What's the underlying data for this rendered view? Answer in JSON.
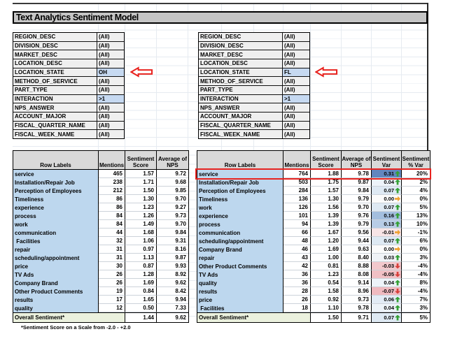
{
  "title": "Text Analytics Sentiment Model",
  "footer_note": "*Sentiment Score on a Scale from -2.0 - +2.0",
  "colors": {
    "row_label_bg": "#BDD7EE",
    "header_bg": "#D9D9D9",
    "overall_label_bg": "#EBF1DE",
    "filter_bg": "#EFEFEF",
    "filter_highlight_bg": "#C6D9F1",
    "annotation_red": "#E8231F",
    "trend_up_green": "#35A035",
    "trend_flat_orange": "#F0A232",
    "trend_down_red": "#D8403B"
  },
  "filters": {
    "labels": [
      "REGION_DESC",
      "DIVISION_DESC",
      "MARKET_DESC",
      "LOCATION_DESC",
      "LOCATION_STATE",
      "METHOD_OF_SERVICE",
      "PART_TYPE",
      "INTERACTION",
      "NPS_ANSWER",
      "ACCOUNT_MAJOR",
      "FISCAL_QUARTER_NAME",
      "FISCAL_WEEK_NAME"
    ],
    "left": {
      "values": [
        "(All)",
        "(All)",
        "(All)",
        "(All)",
        "OH",
        "(All)",
        "(All)",
        ">1",
        "(All)",
        "(All)",
        "(All)",
        "(All)"
      ],
      "highlighted": [
        4,
        7
      ]
    },
    "right": {
      "values": [
        "(All)",
        "(All)",
        "(All)",
        "(All)",
        "FL",
        "(All)",
        "(All)",
        ">1",
        "(All)",
        "(All)",
        "(All)",
        "(All)"
      ],
      "highlighted": [
        4,
        7
      ]
    }
  },
  "left_table": {
    "headers": [
      "Row Labels",
      "Mentions",
      "Sentiment Score",
      "Average of NPS"
    ],
    "rows": [
      {
        "label": "service",
        "mentions": "465",
        "score": "1.57",
        "nps": "9.72"
      },
      {
        "label": "Installation/Repair Job",
        "mentions": "238",
        "score": "1.71",
        "nps": "9.68"
      },
      {
        "label": "Perception of Employees",
        "mentions": "212",
        "score": "1.50",
        "nps": "9.85"
      },
      {
        "label": "Timeliness",
        "mentions": "86",
        "score": "1.30",
        "nps": "9.70"
      },
      {
        "label": "experience",
        "mentions": "86",
        "score": "1.23",
        "nps": "9.27"
      },
      {
        "label": "process",
        "mentions": "84",
        "score": "1.26",
        "nps": "9.73"
      },
      {
        "label": "work",
        "mentions": "84",
        "score": "1.49",
        "nps": "9.70"
      },
      {
        "label": "communication",
        "mentions": "44",
        "score": "1.68",
        "nps": "9.84"
      },
      {
        "label": " Facilities",
        "mentions": "32",
        "score": "1.06",
        "nps": "9.31"
      },
      {
        "label": "repair",
        "mentions": "31",
        "score": "0.97",
        "nps": "8.16"
      },
      {
        "label": "scheduling/appointment",
        "mentions": "31",
        "score": "1.13",
        "nps": "9.87"
      },
      {
        "label": "price",
        "mentions": "30",
        "score": "0.87",
        "nps": "9.93"
      },
      {
        "label": "TV Ads",
        "mentions": "26",
        "score": "1.28",
        "nps": "8.92"
      },
      {
        "label": "Company Brand",
        "mentions": "26",
        "score": "1.69",
        "nps": "9.62"
      },
      {
        "label": "Other Product Comments",
        "mentions": "19",
        "score": "0.84",
        "nps": "8.42"
      },
      {
        "label": "results",
        "mentions": "17",
        "score": "1.65",
        "nps": "9.94"
      },
      {
        "label": "quality",
        "mentions": "12",
        "score": "0.50",
        "nps": "7.33"
      }
    ],
    "overall": {
      "label": "Overall Sentiment*",
      "score": "1.44",
      "nps": "9.62"
    }
  },
  "right_table": {
    "headers": [
      "Row Labels",
      "Mentions",
      "Sentiment Score",
      "Average of NPS",
      "Sentiment Var",
      "Sentiment % Var"
    ],
    "rows": [
      {
        "label": "service",
        "mentions": "764",
        "score": "1.88",
        "nps": "9.78",
        "var": "0.31",
        "var_bg": "#6286BE",
        "trend": "up",
        "pct": "20%"
      },
      {
        "label": "Installation/Repair Job",
        "mentions": "503",
        "score": "1.75",
        "nps": "9.87",
        "var": "0.04",
        "var_bg": "#EDF3F9",
        "trend": "up",
        "pct": "2%"
      },
      {
        "label": "Perception of Employees",
        "mentions": "284",
        "score": "1.57",
        "nps": "9.84",
        "var": "0.07",
        "var_bg": "#DEE9F3",
        "trend": "up",
        "pct": "4%"
      },
      {
        "label": "Timeliness",
        "mentions": "136",
        "score": "1.30",
        "nps": "9.79",
        "var": "0.00",
        "var_bg": "#FBFBFB",
        "trend": "right",
        "pct": "0%"
      },
      {
        "label": "work",
        "mentions": "126",
        "score": "1.56",
        "nps": "9.70",
        "var": "0.07",
        "var_bg": "#DEE9F3",
        "trend": "up",
        "pct": "5%"
      },
      {
        "label": "experience",
        "mentions": "101",
        "score": "1.39",
        "nps": "9.76",
        "var": "0.16",
        "var_bg": "#A3BEDE",
        "trend": "up",
        "pct": "13%"
      },
      {
        "label": "process",
        "mentions": "94",
        "score": "1.39",
        "nps": "9.79",
        "var": "0.13",
        "var_bg": "#B7CCE6",
        "trend": "up",
        "pct": "10%"
      },
      {
        "label": "communication",
        "mentions": "66",
        "score": "1.67",
        "nps": "9.56",
        "var": "-0.01",
        "var_bg": "#F7E4E6",
        "trend": "right",
        "pct": "-1%"
      },
      {
        "label": "scheduling/appointment",
        "mentions": "48",
        "score": "1.20",
        "nps": "9.44",
        "var": "0.07",
        "var_bg": "#DEE9F3",
        "trend": "up",
        "pct": "6%"
      },
      {
        "label": "Company Brand",
        "mentions": "46",
        "score": "1.69",
        "nps": "9.63",
        "var": "0.00",
        "var_bg": "#FBFBFB",
        "trend": "right",
        "pct": "0%"
      },
      {
        "label": "repair",
        "mentions": "43",
        "score": "1.00",
        "nps": "8.40",
        "var": "0.03",
        "var_bg": "#F0F3F7",
        "trend": "up",
        "pct": "3%"
      },
      {
        "label": "Other Product Comments",
        "mentions": "42",
        "score": "0.81",
        "nps": "8.88",
        "var": "-0.03",
        "var_bg": "#F2C8CC",
        "trend": "down",
        "pct": "-4%"
      },
      {
        "label": "TV Ads",
        "mentions": "36",
        "score": "1.23",
        "nps": "8.08",
        "var": "-0.05",
        "var_bg": "#F0C0C5",
        "trend": "down",
        "pct": "-4%"
      },
      {
        "label": "quality",
        "mentions": "36",
        "score": "0.54",
        "nps": "9.14",
        "var": "0.04",
        "var_bg": "#EDF3F9",
        "trend": "up",
        "pct": "8%"
      },
      {
        "label": "results",
        "mentions": "28",
        "score": "1.58",
        "nps": "8.96",
        "var": "-0.07",
        "var_bg": "#EFBAC0",
        "trend": "down",
        "pct": "-4%"
      },
      {
        "label": "price",
        "mentions": "26",
        "score": "0.92",
        "nps": "9.73",
        "var": "0.06",
        "var_bg": "#E2EBF5",
        "trend": "up",
        "pct": "7%"
      },
      {
        "label": " Facilities",
        "mentions": "18",
        "score": "1.10",
        "nps": "9.78",
        "var": "0.04",
        "var_bg": "#EDF3F9",
        "trend": "up",
        "pct": "3%"
      }
    ],
    "overall": {
      "label": "Overall Sentiment*",
      "score": "1.50",
      "nps": "9.71",
      "var": "0.07",
      "var_bg": "#DEE9F3",
      "trend": "up",
      "pct": "5%"
    },
    "highlighted_row": "service"
  }
}
